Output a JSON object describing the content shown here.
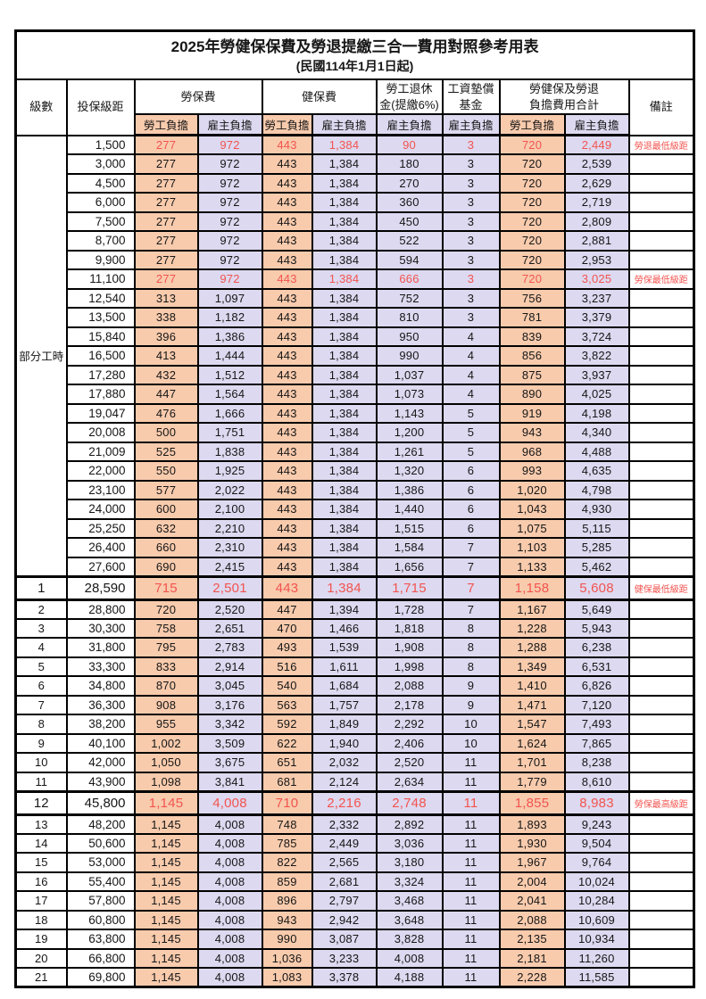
{
  "title": "2025年勞健保保費及勞退提繳三合一費用對照參考用表",
  "subtitle": "(民國114年1月1日起)",
  "colors": {
    "employee_bg": "#F8CBAD",
    "employer_bg": "#DDD9F0",
    "highlight_red": "#F2544F",
    "border": "#000000"
  },
  "header": {
    "level": "級數",
    "bracket": "投保級距",
    "labor_insurance": "勞保費",
    "health_insurance": "健保費",
    "pension": "勞工退休\n金(提繳6%)",
    "wage_fund": "工資墊償\n基金",
    "total": "勞健保及勞退\n負擔費用合計",
    "remark": "備註",
    "employee": "勞工負擔",
    "employer": "雇主負擔"
  },
  "part_time_label": "部分工時",
  "value_col_names": [
    "labor-ins-employee-fee",
    "labor-ins-employer-fee",
    "health-ins-employee-fee",
    "health-ins-employer-fee",
    "pension-employer-fee",
    "wage-fund-employer-fee",
    "total-employee-fee",
    "total-employer-fee"
  ],
  "rows": [
    {
      "level": "部分工時",
      "level_rowspan": 23,
      "bracket": "1,500",
      "values": [
        "277",
        "972",
        "443",
        "1,384",
        "90",
        "3",
        "720",
        "2,449"
      ],
      "remark": "勞退最低級距",
      "red": true
    },
    {
      "bracket": "3,000",
      "values": [
        "277",
        "972",
        "443",
        "1,384",
        "180",
        "3",
        "720",
        "2,539"
      ],
      "remark": ""
    },
    {
      "bracket": "4,500",
      "values": [
        "277",
        "972",
        "443",
        "1,384",
        "270",
        "3",
        "720",
        "2,629"
      ],
      "remark": ""
    },
    {
      "bracket": "6,000",
      "values": [
        "277",
        "972",
        "443",
        "1,384",
        "360",
        "3",
        "720",
        "2,719"
      ],
      "remark": ""
    },
    {
      "bracket": "7,500",
      "values": [
        "277",
        "972",
        "443",
        "1,384",
        "450",
        "3",
        "720",
        "2,809"
      ],
      "remark": ""
    },
    {
      "bracket": "8,700",
      "values": [
        "277",
        "972",
        "443",
        "1,384",
        "522",
        "3",
        "720",
        "2,881"
      ],
      "remark": ""
    },
    {
      "bracket": "9,900",
      "values": [
        "277",
        "972",
        "443",
        "1,384",
        "594",
        "3",
        "720",
        "2,953"
      ],
      "remark": ""
    },
    {
      "bracket": "11,100",
      "values": [
        "277",
        "972",
        "443",
        "1,384",
        "666",
        "3",
        "720",
        "3,025"
      ],
      "remark": "勞保最低級距",
      "red": true
    },
    {
      "bracket": "12,540",
      "values": [
        "313",
        "1,097",
        "443",
        "1,384",
        "752",
        "3",
        "756",
        "3,237"
      ],
      "remark": ""
    },
    {
      "bracket": "13,500",
      "values": [
        "338",
        "1,182",
        "443",
        "1,384",
        "810",
        "3",
        "781",
        "3,379"
      ],
      "remark": ""
    },
    {
      "bracket": "15,840",
      "values": [
        "396",
        "1,386",
        "443",
        "1,384",
        "950",
        "4",
        "839",
        "3,724"
      ],
      "remark": ""
    },
    {
      "bracket": "16,500",
      "values": [
        "413",
        "1,444",
        "443",
        "1,384",
        "990",
        "4",
        "856",
        "3,822"
      ],
      "remark": ""
    },
    {
      "bracket": "17,280",
      "values": [
        "432",
        "1,512",
        "443",
        "1,384",
        "1,037",
        "4",
        "875",
        "3,937"
      ],
      "remark": ""
    },
    {
      "bracket": "17,880",
      "values": [
        "447",
        "1,564",
        "443",
        "1,384",
        "1,073",
        "4",
        "890",
        "4,025"
      ],
      "remark": ""
    },
    {
      "bracket": "19,047",
      "values": [
        "476",
        "1,666",
        "443",
        "1,384",
        "1,143",
        "5",
        "919",
        "4,198"
      ],
      "remark": ""
    },
    {
      "bracket": "20,008",
      "values": [
        "500",
        "1,751",
        "443",
        "1,384",
        "1,200",
        "5",
        "943",
        "4,340"
      ],
      "remark": ""
    },
    {
      "bracket": "21,009",
      "values": [
        "525",
        "1,838",
        "443",
        "1,384",
        "1,261",
        "5",
        "968",
        "4,488"
      ],
      "remark": ""
    },
    {
      "bracket": "22,000",
      "values": [
        "550",
        "1,925",
        "443",
        "1,384",
        "1,320",
        "6",
        "993",
        "4,635"
      ],
      "remark": ""
    },
    {
      "bracket": "23,100",
      "values": [
        "577",
        "2,022",
        "443",
        "1,384",
        "1,386",
        "6",
        "1,020",
        "4,798"
      ],
      "remark": ""
    },
    {
      "bracket": "24,000",
      "values": [
        "600",
        "2,100",
        "443",
        "1,384",
        "1,440",
        "6",
        "1,043",
        "4,930"
      ],
      "remark": ""
    },
    {
      "bracket": "25,250",
      "values": [
        "632",
        "2,210",
        "443",
        "1,384",
        "1,515",
        "6",
        "1,075",
        "5,115"
      ],
      "remark": ""
    },
    {
      "bracket": "26,400",
      "values": [
        "660",
        "2,310",
        "443",
        "1,384",
        "1,584",
        "7",
        "1,103",
        "5,285"
      ],
      "remark": ""
    },
    {
      "bracket": "27,600",
      "values": [
        "690",
        "2,415",
        "443",
        "1,384",
        "1,656",
        "7",
        "1,133",
        "5,462"
      ],
      "remark": ""
    },
    {
      "level": "1",
      "bracket": "28,590",
      "values": [
        "715",
        "2,501",
        "443",
        "1,384",
        "1,715",
        "7",
        "1,158",
        "5,608"
      ],
      "remark": "健保最低級距",
      "red": true,
      "emphasis": true
    },
    {
      "level": "2",
      "bracket": "28,800",
      "values": [
        "720",
        "2,520",
        "447",
        "1,394",
        "1,728",
        "7",
        "1,167",
        "5,649"
      ],
      "remark": ""
    },
    {
      "level": "3",
      "bracket": "30,300",
      "values": [
        "758",
        "2,651",
        "470",
        "1,466",
        "1,818",
        "8",
        "1,228",
        "5,943"
      ],
      "remark": ""
    },
    {
      "level": "4",
      "bracket": "31,800",
      "values": [
        "795",
        "2,783",
        "493",
        "1,539",
        "1,908",
        "8",
        "1,288",
        "6,238"
      ],
      "remark": ""
    },
    {
      "level": "5",
      "bracket": "33,300",
      "values": [
        "833",
        "2,914",
        "516",
        "1,611",
        "1,998",
        "8",
        "1,349",
        "6,531"
      ],
      "remark": ""
    },
    {
      "level": "6",
      "bracket": "34,800",
      "values": [
        "870",
        "3,045",
        "540",
        "1,684",
        "2,088",
        "9",
        "1,410",
        "6,826"
      ],
      "remark": ""
    },
    {
      "level": "7",
      "bracket": "36,300",
      "values": [
        "908",
        "3,176",
        "563",
        "1,757",
        "2,178",
        "9",
        "1,471",
        "7,120"
      ],
      "remark": ""
    },
    {
      "level": "8",
      "bracket": "38,200",
      "values": [
        "955",
        "3,342",
        "592",
        "1,849",
        "2,292",
        "10",
        "1,547",
        "7,493"
      ],
      "remark": ""
    },
    {
      "level": "9",
      "bracket": "40,100",
      "values": [
        "1,002",
        "3,509",
        "622",
        "1,940",
        "2,406",
        "10",
        "1,624",
        "7,865"
      ],
      "remark": ""
    },
    {
      "level": "10",
      "bracket": "42,000",
      "values": [
        "1,050",
        "3,675",
        "651",
        "2,032",
        "2,520",
        "11",
        "1,701",
        "8,238"
      ],
      "remark": ""
    },
    {
      "level": "11",
      "bracket": "43,900",
      "values": [
        "1,098",
        "3,841",
        "681",
        "2,124",
        "2,634",
        "11",
        "1,779",
        "8,610"
      ],
      "remark": ""
    },
    {
      "level": "12",
      "bracket": "45,800",
      "values": [
        "1,145",
        "4,008",
        "710",
        "2,216",
        "2,748",
        "11",
        "1,855",
        "8,983"
      ],
      "remark": "勞保最高級距",
      "red": true,
      "emphasis": true
    },
    {
      "level": "13",
      "bracket": "48,200",
      "values": [
        "1,145",
        "4,008",
        "748",
        "2,332",
        "2,892",
        "11",
        "1,893",
        "9,243"
      ],
      "remark": ""
    },
    {
      "level": "14",
      "bracket": "50,600",
      "values": [
        "1,145",
        "4,008",
        "785",
        "2,449",
        "3,036",
        "11",
        "1,930",
        "9,504"
      ],
      "remark": ""
    },
    {
      "level": "15",
      "bracket": "53,000",
      "values": [
        "1,145",
        "4,008",
        "822",
        "2,565",
        "3,180",
        "11",
        "1,967",
        "9,764"
      ],
      "remark": ""
    },
    {
      "level": "16",
      "bracket": "55,400",
      "values": [
        "1,145",
        "4,008",
        "859",
        "2,681",
        "3,324",
        "11",
        "2,004",
        "10,024"
      ],
      "remark": ""
    },
    {
      "level": "17",
      "bracket": "57,800",
      "values": [
        "1,145",
        "4,008",
        "896",
        "2,797",
        "3,468",
        "11",
        "2,041",
        "10,284"
      ],
      "remark": ""
    },
    {
      "level": "18",
      "bracket": "60,800",
      "values": [
        "1,145",
        "4,008",
        "943",
        "2,942",
        "3,648",
        "11",
        "2,088",
        "10,609"
      ],
      "remark": ""
    },
    {
      "level": "19",
      "bracket": "63,800",
      "values": [
        "1,145",
        "4,008",
        "990",
        "3,087",
        "3,828",
        "11",
        "2,135",
        "10,934"
      ],
      "remark": ""
    },
    {
      "level": "20",
      "bracket": "66,800",
      "values": [
        "1,145",
        "4,008",
        "1,036",
        "3,233",
        "4,008",
        "11",
        "2,181",
        "11,260"
      ],
      "remark": ""
    },
    {
      "level": "21",
      "bracket": "69,800",
      "values": [
        "1,145",
        "4,008",
        "1,083",
        "3,378",
        "4,188",
        "11",
        "2,228",
        "11,585"
      ],
      "remark": ""
    }
  ]
}
